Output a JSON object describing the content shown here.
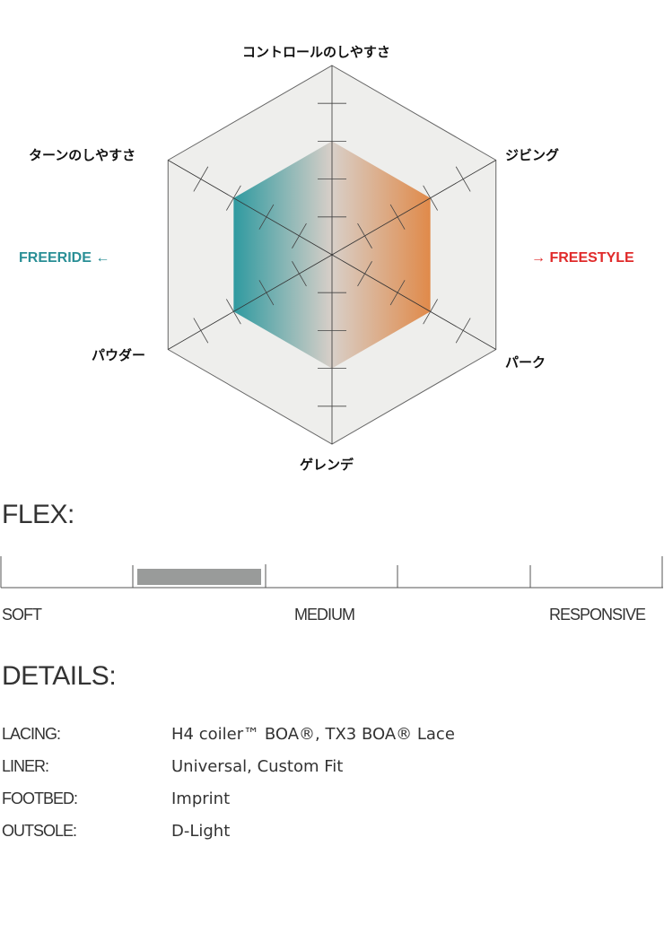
{
  "chart_data": {
    "type": "radar",
    "axes": [
      "コントロールのしやすさ",
      "ジビング",
      "パーク",
      "ゲレンデ",
      "パウダー",
      "ターンのしやすさ"
    ],
    "values": [
      3,
      3,
      3,
      3,
      3,
      3
    ],
    "max": 5,
    "colors": {
      "left": "#2f9aa0",
      "right": "#e08a4a",
      "background": "#eeeeec"
    },
    "directions": {
      "left": "FREERIDE",
      "right": "FREESTYLE",
      "left_color": "#2a8f96",
      "right_color": "#e02a2a"
    }
  },
  "flex": {
    "title": "FLEX:",
    "segments": 5,
    "filled_segment": 2,
    "labels": {
      "soft": "SOFT",
      "medium": "MEDIUM",
      "responsive": "RESPONSIVE"
    },
    "fill_color": "#999b9a"
  },
  "details": {
    "title": "DETAILS:",
    "rows": [
      {
        "key": "LACING:",
        "value": "H4 coiler™ BOA®, TX3 BOA® Lace"
      },
      {
        "key": "LINER:",
        "value": "Universal, Custom Fit"
      },
      {
        "key": "FOOTBED:",
        "value": "Imprint"
      },
      {
        "key": "OUTSOLE:",
        "value": "D-Light"
      }
    ]
  }
}
